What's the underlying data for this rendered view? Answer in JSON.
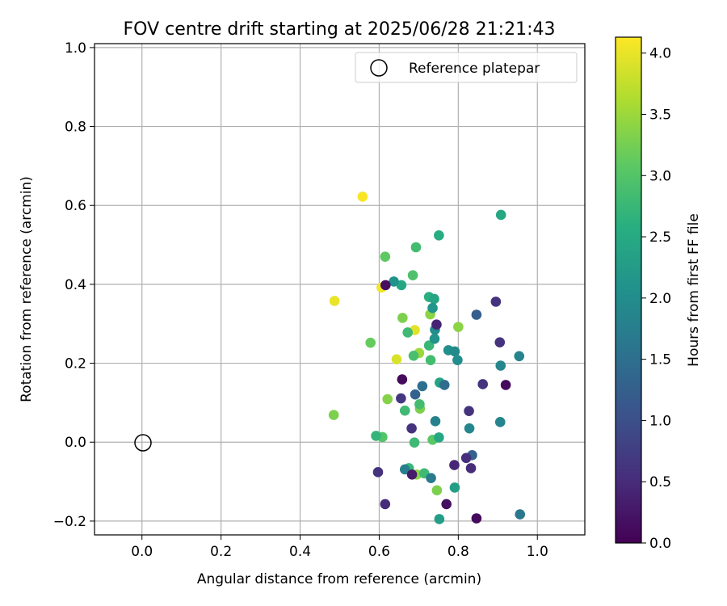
{
  "chart_data": {
    "type": "scatter",
    "title": "FOV centre drift starting at 2025/06/28 21:21:43",
    "xlabel": "Angular distance from reference (arcmin)",
    "ylabel": "Rotation from reference (arcmin)",
    "xlim": [
      -0.12,
      1.12
    ],
    "ylim": [
      -0.235,
      1.01
    ],
    "x_ticks": [
      0.0,
      0.2,
      0.4,
      0.6,
      0.8,
      1.0
    ],
    "x_tick_labels": [
      "0.0",
      "0.2",
      "0.4",
      "0.6",
      "0.8",
      "1.0"
    ],
    "y_ticks": [
      -0.2,
      0.0,
      0.2,
      0.4,
      0.6,
      0.8,
      1.0
    ],
    "y_tick_labels": [
      "−0.2",
      "0.0",
      "0.2",
      "0.4",
      "0.6",
      "0.8",
      "1.0"
    ],
    "grid": true,
    "legend": {
      "placement": "top-right",
      "entries": [
        "Reference platepar"
      ]
    },
    "reference_point": {
      "x": 0.0,
      "y": 0.0,
      "label": "Reference platepar"
    },
    "colorbar": {
      "label": "Hours from first FF file",
      "colormap": "viridis",
      "range": [
        0.0,
        4.13
      ],
      "ticks": [
        0.0,
        0.5,
        1.0,
        1.5,
        2.0,
        2.5,
        3.0,
        3.5,
        4.0
      ],
      "tick_labels": [
        "0.0",
        "0.5",
        "1.0",
        "1.5",
        "2.0",
        "2.5",
        "3.0",
        "3.5",
        "4.0"
      ]
    },
    "points": [
      {
        "x": 0.558,
        "y": 0.622,
        "h": 4.1
      },
      {
        "x": 0.487,
        "y": 0.358,
        "h": 4.0
      },
      {
        "x": 0.606,
        "y": 0.392,
        "h": 4.05
      },
      {
        "x": 0.69,
        "y": 0.284,
        "h": 3.95
      },
      {
        "x": 0.644,
        "y": 0.21,
        "h": 3.9
      },
      {
        "x": 0.615,
        "y": 0.47,
        "h": 3.1
      },
      {
        "x": 0.578,
        "y": 0.252,
        "h": 3.15
      },
      {
        "x": 0.485,
        "y": 0.069,
        "h": 3.3
      },
      {
        "x": 0.659,
        "y": 0.315,
        "h": 3.3
      },
      {
        "x": 0.729,
        "y": 0.324,
        "h": 3.4
      },
      {
        "x": 0.8,
        "y": 0.292,
        "h": 3.4
      },
      {
        "x": 0.701,
        "y": 0.226,
        "h": 3.5
      },
      {
        "x": 0.621,
        "y": 0.109,
        "h": 3.35
      },
      {
        "x": 0.703,
        "y": 0.085,
        "h": 3.3
      },
      {
        "x": 0.695,
        "y": -0.082,
        "h": 3.4
      },
      {
        "x": 0.746,
        "y": -0.122,
        "h": 3.3
      },
      {
        "x": 0.608,
        "y": 0.013,
        "h": 3.0
      },
      {
        "x": 0.735,
        "y": 0.006,
        "h": 3.05
      },
      {
        "x": 0.693,
        "y": 0.494,
        "h": 2.85
      },
      {
        "x": 0.685,
        "y": 0.423,
        "h": 2.95
      },
      {
        "x": 0.672,
        "y": 0.278,
        "h": 2.8
      },
      {
        "x": 0.687,
        "y": 0.219,
        "h": 2.9
      },
      {
        "x": 0.73,
        "y": 0.208,
        "h": 2.85
      },
      {
        "x": 0.726,
        "y": 0.245,
        "h": 2.75
      },
      {
        "x": 0.665,
        "y": 0.08,
        "h": 2.8
      },
      {
        "x": 0.702,
        "y": 0.096,
        "h": 2.85
      },
      {
        "x": 0.592,
        "y": 0.016,
        "h": 2.7
      },
      {
        "x": 0.689,
        "y": -0.001,
        "h": 2.8
      },
      {
        "x": 0.675,
        "y": -0.066,
        "h": 2.75
      },
      {
        "x": 0.714,
        "y": -0.079,
        "h": 2.8
      },
      {
        "x": 0.751,
        "y": 0.524,
        "h": 2.55
      },
      {
        "x": 0.908,
        "y": 0.576,
        "h": 2.45
      },
      {
        "x": 0.656,
        "y": 0.398,
        "h": 2.45
      },
      {
        "x": 0.726,
        "y": 0.368,
        "h": 2.6
      },
      {
        "x": 0.739,
        "y": 0.363,
        "h": 2.4
      },
      {
        "x": 0.753,
        "y": 0.151,
        "h": 2.4
      },
      {
        "x": 0.751,
        "y": 0.012,
        "h": 2.45
      },
      {
        "x": 0.791,
        "y": -0.115,
        "h": 2.3
      },
      {
        "x": 0.752,
        "y": -0.195,
        "h": 2.3
      },
      {
        "x": 0.637,
        "y": 0.407,
        "h": 2.1
      },
      {
        "x": 0.735,
        "y": 0.34,
        "h": 2.15
      },
      {
        "x": 0.741,
        "y": 0.285,
        "h": 2.0
      },
      {
        "x": 0.74,
        "y": 0.262,
        "h": 2.1
      },
      {
        "x": 0.775,
        "y": 0.233,
        "h": 2.05
      },
      {
        "x": 0.791,
        "y": 0.23,
        "h": 1.95
      },
      {
        "x": 0.798,
        "y": 0.208,
        "h": 2.0
      },
      {
        "x": 0.954,
        "y": 0.218,
        "h": 1.85
      },
      {
        "x": 0.907,
        "y": 0.194,
        "h": 1.9
      },
      {
        "x": 0.906,
        "y": 0.051,
        "h": 1.85
      },
      {
        "x": 0.828,
        "y": 0.035,
        "h": 1.9
      },
      {
        "x": 0.742,
        "y": 0.053,
        "h": 1.8
      },
      {
        "x": 0.665,
        "y": -0.069,
        "h": 1.75
      },
      {
        "x": 0.731,
        "y": -0.091,
        "h": 1.7
      },
      {
        "x": 0.956,
        "y": -0.183,
        "h": 1.65
      },
      {
        "x": 0.709,
        "y": 0.142,
        "h": 1.5
      },
      {
        "x": 0.765,
        "y": 0.145,
        "h": 1.45
      },
      {
        "x": 0.691,
        "y": 0.121,
        "h": 1.3
      },
      {
        "x": 0.846,
        "y": 0.323,
        "h": 1.25
      },
      {
        "x": 0.835,
        "y": -0.033,
        "h": 1.3
      },
      {
        "x": 0.895,
        "y": 0.356,
        "h": 0.6
      },
      {
        "x": 0.905,
        "y": 0.253,
        "h": 0.6
      },
      {
        "x": 0.862,
        "y": 0.147,
        "h": 0.6
      },
      {
        "x": 0.827,
        "y": 0.079,
        "h": 0.6
      },
      {
        "x": 0.682,
        "y": 0.035,
        "h": 0.6
      },
      {
        "x": 0.655,
        "y": 0.111,
        "h": 0.65
      },
      {
        "x": 0.597,
        "y": -0.076,
        "h": 0.6
      },
      {
        "x": 0.82,
        "y": -0.04,
        "h": 0.55
      },
      {
        "x": 0.832,
        "y": -0.066,
        "h": 0.5
      },
      {
        "x": 0.79,
        "y": -0.058,
        "h": 0.45
      },
      {
        "x": 0.615,
        "y": -0.157,
        "h": 0.5
      },
      {
        "x": 0.745,
        "y": 0.298,
        "h": 0.4
      },
      {
        "x": 0.683,
        "y": -0.082,
        "h": 0.3
      },
      {
        "x": 0.658,
        "y": 0.159,
        "h": 0.1
      },
      {
        "x": 0.92,
        "y": 0.145,
        "h": 0.1
      },
      {
        "x": 0.616,
        "y": 0.398,
        "h": 0.15
      },
      {
        "x": 0.77,
        "y": -0.157,
        "h": 0.15
      },
      {
        "x": 0.846,
        "y": -0.193,
        "h": 0.1
      }
    ]
  }
}
